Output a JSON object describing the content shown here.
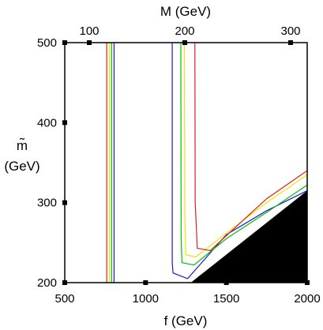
{
  "chart_data": {
    "type": "line",
    "title": "",
    "xlabel": "f (GeV)",
    "ylabel": [
      "m̃",
      "(GeV)"
    ],
    "top_axis_label": "M (GeV)",
    "xlim": [
      500,
      2000
    ],
    "ylim": [
      200,
      500
    ],
    "x_ticks": [
      500,
      1000,
      1500,
      2000
    ],
    "y_ticks": [
      200,
      300,
      400,
      500
    ],
    "top_ticks": [
      {
        "label": "100",
        "at_f": 650
      },
      {
        "label": "200",
        "at_f": 1750
      },
      {
        "label": "300",
        "at_f": 1750
      }
    ],
    "grid": false,
    "colors": {
      "red": "#e02020",
      "yellow": "#e8e800",
      "green": "#00c000",
      "blue": "#1a1ad0",
      "excluded": "#000000"
    },
    "series": [
      {
        "color": "red",
        "x": [
          [
            760,
            760
          ]
        ],
        "y": [
          [
            200,
            500
          ]
        ]
      },
      {
        "color": "yellow",
        "x": [
          [
            775,
            775
          ]
        ],
        "y": [
          [
            200,
            500
          ]
        ]
      },
      {
        "color": "green",
        "x": [
          [
            790,
            790
          ]
        ],
        "y": [
          [
            200,
            500
          ]
        ]
      },
      {
        "color": "blue",
        "x": [
          [
            805,
            805
          ]
        ],
        "y": [
          [
            200,
            500
          ]
        ]
      }
    ],
    "curves": [
      {
        "color": "blue",
        "x": [
          1165,
          1165,
          1170,
          1260,
          1500,
          1750,
          2000
        ],
        "y": [
          500,
          225,
          212,
          205,
          260,
          290,
          315
        ]
      },
      {
        "color": "green",
        "x": [
          1218,
          1220,
          1225,
          1300,
          1500,
          1750,
          2000
        ],
        "y": [
          500,
          258,
          225,
          222,
          255,
          288,
          322
        ]
      },
      {
        "color": "yellow",
        "x": [
          1240,
          1243,
          1248,
          1310,
          1500,
          1750,
          2000
        ],
        "y": [
          500,
          280,
          235,
          232,
          262,
          300,
          335
        ]
      },
      {
        "color": "red",
        "x": [
          1305,
          1307,
          1320,
          1400,
          1550,
          1750,
          2000
        ],
        "y": [
          500,
          300,
          243,
          240,
          268,
          305,
          340
        ]
      }
    ],
    "excluded_region": {
      "x": [
        1280,
        2000,
        2000
      ],
      "y": [
        200,
        200,
        315
      ]
    }
  }
}
